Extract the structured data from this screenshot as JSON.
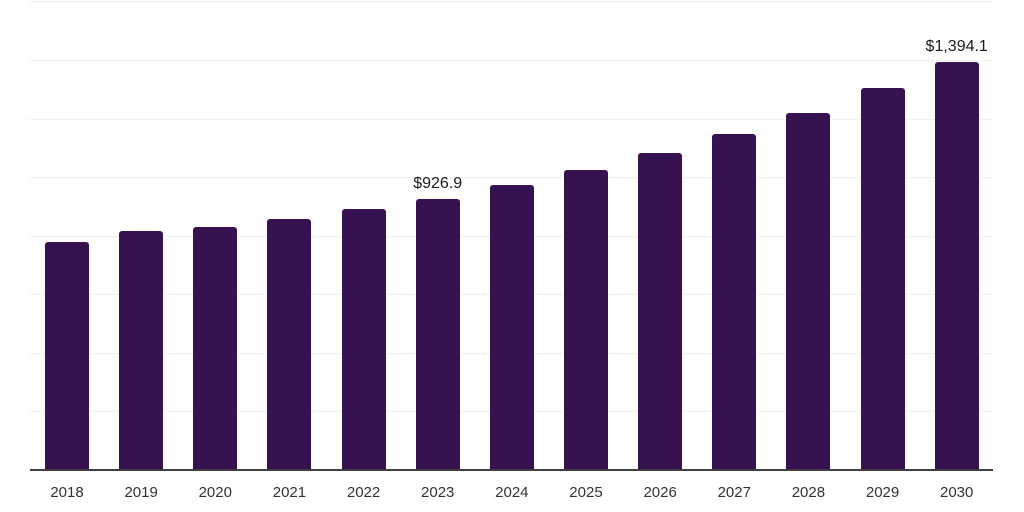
{
  "chart_data": {
    "type": "bar",
    "title": "",
    "xlabel": "",
    "ylabel": "",
    "categories": [
      "2018",
      "2019",
      "2020",
      "2021",
      "2022",
      "2023",
      "2024",
      "2025",
      "2026",
      "2027",
      "2028",
      "2029",
      "2030"
    ],
    "values": [
      778.5,
      815.0,
      830.2,
      855.7,
      889.6,
      926.9,
      971.5,
      1023.5,
      1081.0,
      1146.5,
      1219.0,
      1303.5,
      1394.1
    ],
    "labeled_points": [
      {
        "category": "2023",
        "label": "$926.9"
      },
      {
        "category": "2030",
        "label": "$1,394.1"
      }
    ],
    "ylim": [
      0,
      1600
    ],
    "gridline_step": 200,
    "grid": "horizontal-only",
    "legend": "none",
    "y_tick_labels_shown": false,
    "bar_color": "#371250",
    "background_color": "#ffffff",
    "gridline_color": "#f0f0f0",
    "axis_line_color": "#404040",
    "value_label_color": "#1a1a1a",
    "tick_label_color": "#333333"
  }
}
